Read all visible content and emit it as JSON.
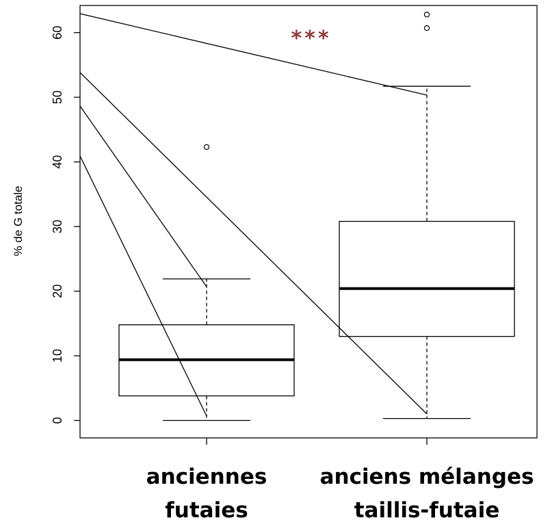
{
  "chart_data": {
    "type": "box",
    "ylabel": "% de G totale",
    "ylim": [
      -2.7,
      64.2
    ],
    "yticks": [
      "0",
      "10",
      "20",
      "30",
      "40",
      "50",
      "60"
    ],
    "categories": [
      {
        "lines": [
          "anciennes",
          "futaies"
        ]
      },
      {
        "lines": [
          "anciens mélanges",
          "taillis-futaie"
        ]
      }
    ],
    "boxes": [
      {
        "whisker_low": 0.0,
        "q1": 3.8,
        "median": 9.4,
        "q3": 14.8,
        "whisker_high": 21.9,
        "outliers": [
          42.3
        ]
      },
      {
        "whisker_low": 0.3,
        "q1": 13.0,
        "median": 20.4,
        "q3": 30.8,
        "whisker_high": 51.7,
        "outliers": [
          60.7,
          62.8
        ]
      }
    ],
    "significance": "***",
    "significance_color": "#8b3a3a",
    "grid": false
  }
}
